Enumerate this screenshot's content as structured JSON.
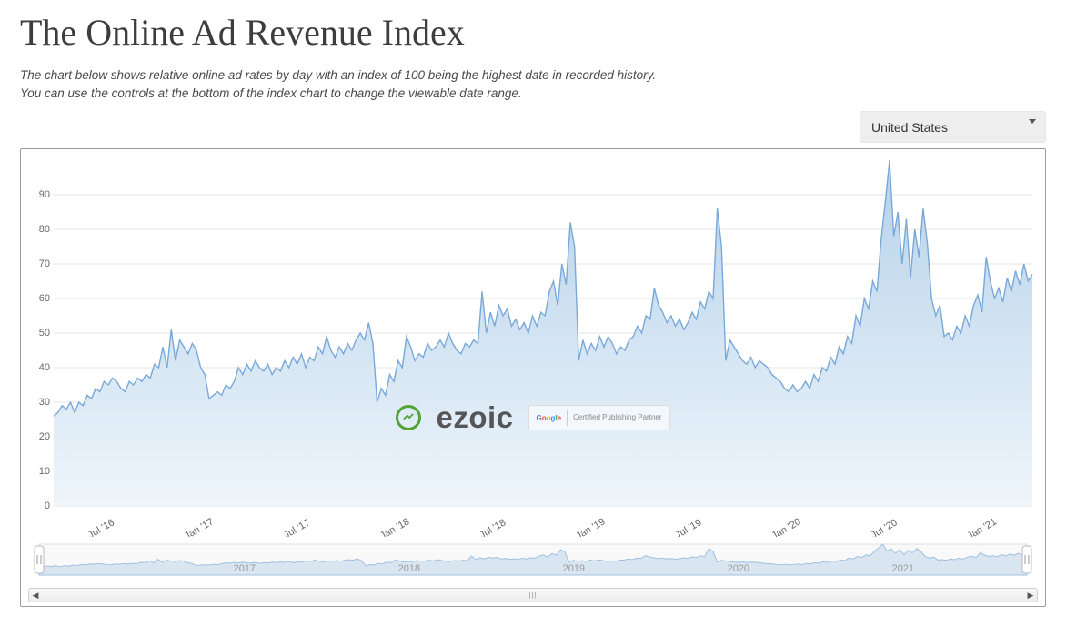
{
  "header": {
    "title": "The Online Ad Revenue Index",
    "subtitle_line1": "The chart below shows relative online ad rates by day with an index of 100 being the highest date in recorded history.",
    "subtitle_line2": "You can use the controls at the bottom of the index chart to change the viewable date range."
  },
  "controls": {
    "country_select": {
      "selected": "United States",
      "options": [
        "United States"
      ]
    }
  },
  "watermark": {
    "brand": "ezoic",
    "partner_brand": "Google",
    "partner_text": "Certified Publishing Partner"
  },
  "chart": {
    "type": "area",
    "line_color": "#79a9d9",
    "area_gradient_top": "#b6d2ea",
    "area_gradient_bottom": "#eef5fb",
    "grid_color": "#e6e6e6",
    "background_color": "#ffffff",
    "axis_font_size": 11,
    "axis_font_color": "#666666",
    "ylim": [
      0,
      100
    ],
    "ytick_step": 10,
    "yticks": [
      0,
      10,
      20,
      30,
      40,
      50,
      60,
      70,
      80,
      90
    ],
    "x_categories": [
      "Jul '16",
      "Jan '17",
      "Jul '17",
      "Jan '18",
      "Jul '18",
      "Jan '19",
      "Jul '19",
      "Jan '20",
      "Jul '20",
      "Jan '21"
    ],
    "nav_years": [
      "2017",
      "2018",
      "2019",
      "2020",
      "2021"
    ],
    "series": [
      26,
      27,
      29,
      28,
      30,
      27,
      30,
      29,
      32,
      31,
      34,
      33,
      36,
      35,
      37,
      36,
      34,
      33,
      36,
      35,
      37,
      36,
      38,
      37,
      41,
      40,
      46,
      40,
      51,
      42,
      48,
      46,
      44,
      47,
      45,
      40,
      38,
      31,
      32,
      33,
      32,
      35,
      34,
      36,
      40,
      38,
      41,
      39,
      42,
      40,
      39,
      41,
      38,
      40,
      39,
      42,
      40,
      43,
      41,
      44,
      40,
      43,
      42,
      46,
      44,
      49,
      45,
      43,
      46,
      44,
      47,
      45,
      48,
      50,
      48,
      53,
      47,
      30,
      34,
      32,
      38,
      36,
      42,
      40,
      49,
      46,
      42,
      44,
      43,
      47,
      45,
      46,
      48,
      46,
      50,
      47,
      45,
      44,
      47,
      46,
      48,
      47,
      62,
      50,
      56,
      52,
      58,
      55,
      57,
      52,
      54,
      51,
      53,
      50,
      55,
      52,
      56,
      55,
      62,
      65,
      58,
      70,
      64,
      82,
      75,
      42,
      48,
      44,
      47,
      45,
      49,
      46,
      49,
      47,
      44,
      46,
      45,
      48,
      49,
      52,
      50,
      55,
      54,
      63,
      58,
      56,
      53,
      55,
      52,
      54,
      51,
      53,
      56,
      54,
      59,
      57,
      62,
      60,
      86,
      75,
      42,
      48,
      46,
      44,
      42,
      41,
      43,
      40,
      42,
      41,
      40,
      38,
      37,
      36,
      34,
      33,
      35,
      33,
      34,
      36,
      34,
      38,
      36,
      40,
      39,
      43,
      41,
      46,
      44,
      49,
      47,
      55,
      52,
      60,
      57,
      65,
      62,
      77,
      88,
      100,
      78,
      85,
      70,
      83,
      66,
      80,
      72,
      86,
      76,
      60,
      55,
      58,
      49,
      50,
      48,
      52,
      50,
      55,
      52,
      58,
      61,
      56,
      72,
      65,
      60,
      63,
      59,
      66,
      62,
      68,
      64,
      70,
      65,
      67
    ]
  }
}
